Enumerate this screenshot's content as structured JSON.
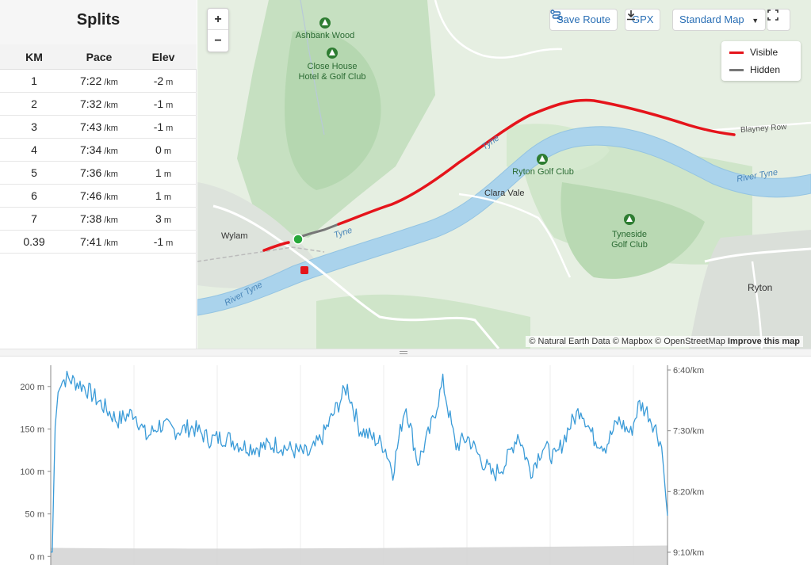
{
  "splits": {
    "title": "Splits",
    "headers": {
      "km": "KM",
      "pace": "Pace",
      "elev": "Elev"
    },
    "pace_unit": "/km",
    "elev_unit": "m",
    "rows": [
      {
        "km": "1",
        "pace": "7:22",
        "elev": "-2"
      },
      {
        "km": "2",
        "pace": "7:32",
        "elev": "-1"
      },
      {
        "km": "3",
        "pace": "7:43",
        "elev": "-1"
      },
      {
        "km": "4",
        "pace": "7:34",
        "elev": "0"
      },
      {
        "km": "5",
        "pace": "7:36",
        "elev": "1"
      },
      {
        "km": "6",
        "pace": "7:46",
        "elev": "1"
      },
      {
        "km": "7",
        "pace": "7:38",
        "elev": "3"
      },
      {
        "km": "0.39",
        "pace": "7:41",
        "elev": "-1"
      }
    ]
  },
  "map": {
    "zoom_in": "+",
    "zoom_out": "−",
    "toolbar": {
      "save_route": "Save Route",
      "gpx": "GPX",
      "map_style": "Standard Map"
    },
    "legend": {
      "visible": "Visible",
      "hidden": "Hidden",
      "visible_color": "#e5141b",
      "hidden_color": "#777777"
    },
    "labels": {
      "ashbank_wood": "Ashbank Wood",
      "close_house": "Close House\nHotel & Golf Club",
      "ryton_golf": "Ryton Golf Club",
      "tyneside_golf": "Tyneside\nGolf Club",
      "clara_vale": "Clara Vale",
      "wylam": "Wylam",
      "ryton": "Ryton",
      "blayney_row": "Blayney Row",
      "river_tyne_1": "River Tyne",
      "river_tyne_2": "River Tyne",
      "tyne_1": "Tyne",
      "tyne_2": "Tyne"
    },
    "attribution": "© Natural Earth Data © Mapbox © OpenStreetMap",
    "improve": "Improve this map"
  },
  "chart_data": {
    "type": "line",
    "series": [],
    "y_left_ticks": [
      "200 m",
      "150 m",
      "100 m",
      "50 m",
      "0 m"
    ],
    "y_left_values": [
      200,
      150,
      100,
      50,
      0
    ],
    "y_right_ticks": [
      "6:40/km",
      "7:30/km",
      "8:20/km",
      "9:10/km"
    ],
    "ylim": [
      -10,
      225
    ],
    "x_range_km": [
      0,
      7.39
    ],
    "pace_line_color": "#3a9bd8",
    "elevation_fill_color": "#d0d0d0",
    "pace_keypoints": [
      [
        0.0,
        5
      ],
      [
        0.02,
        5
      ],
      [
        0.05,
        150
      ],
      [
        0.1,
        205
      ],
      [
        0.2,
        210
      ],
      [
        0.4,
        200
      ],
      [
        0.6,
        180
      ],
      [
        0.8,
        160
      ],
      [
        1.0,
        170
      ],
      [
        1.15,
        140
      ],
      [
        1.3,
        155
      ],
      [
        1.5,
        148
      ],
      [
        1.7,
        152
      ],
      [
        1.9,
        138
      ],
      [
        2.1,
        140
      ],
      [
        2.3,
        130
      ],
      [
        2.5,
        128
      ],
      [
        2.7,
        132
      ],
      [
        2.9,
        125
      ],
      [
        3.1,
        120
      ],
      [
        3.25,
        140
      ],
      [
        3.4,
        170
      ],
      [
        3.55,
        200
      ],
      [
        3.7,
        150
      ],
      [
        3.85,
        140
      ],
      [
        4.0,
        130
      ],
      [
        4.1,
        100
      ],
      [
        4.25,
        180
      ],
      [
        4.4,
        110
      ],
      [
        4.55,
        150
      ],
      [
        4.7,
        205
      ],
      [
        4.85,
        130
      ],
      [
        5.0,
        140
      ],
      [
        5.15,
        115
      ],
      [
        5.3,
        95
      ],
      [
        5.45,
        110
      ],
      [
        5.6,
        145
      ],
      [
        5.75,
        100
      ],
      [
        5.9,
        130
      ],
      [
        6.05,
        115
      ],
      [
        6.2,
        150
      ],
      [
        6.35,
        175
      ],
      [
        6.5,
        140
      ],
      [
        6.65,
        130
      ],
      [
        6.8,
        160
      ],
      [
        6.95,
        145
      ],
      [
        7.05,
        180
      ],
      [
        7.15,
        170
      ],
      [
        7.25,
        150
      ],
      [
        7.32,
        130
      ],
      [
        7.37,
        70
      ],
      [
        7.39,
        48
      ]
    ],
    "elevation_level": 10
  }
}
